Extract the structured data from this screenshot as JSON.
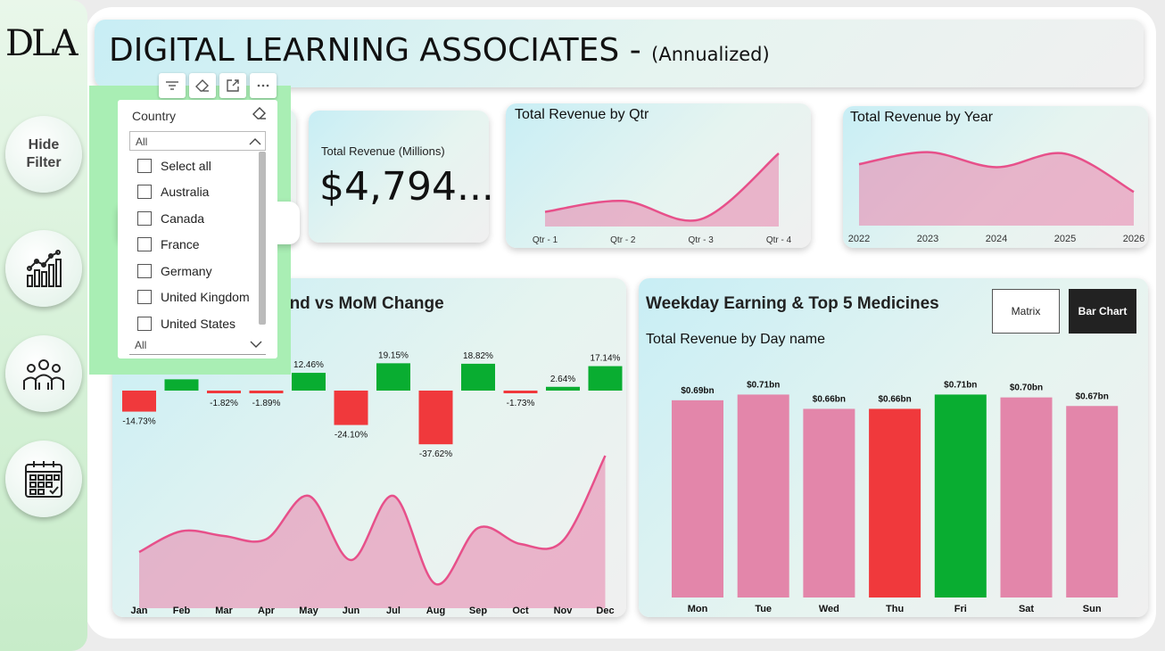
{
  "logo": "DLA",
  "sidebar": {
    "hide_filter_label_1": "Hide",
    "hide_filter_label_2": "Filter",
    "icons": [
      "line-chart-icon",
      "people-icon",
      "calendar-icon"
    ]
  },
  "header": {
    "title": "DIGITAL LEARNING ASSOCIATES -",
    "subtitle": "(Annualized)"
  },
  "kpi": {
    "label": "Total Revenue (Millions)",
    "value": "$4,794..."
  },
  "qtr_chart": {
    "title": "Total Revenue by Qtr",
    "chart_data": {
      "type": "area",
      "categories": [
        "Qtr - 1",
        "Qtr - 2",
        "Qtr - 3",
        "Qtr - 4"
      ],
      "values": [
        0.2,
        0.35,
        0.1,
        1.0
      ]
    }
  },
  "year_chart": {
    "title": "Total Revenue by Year",
    "chart_data": {
      "type": "area",
      "categories": [
        "2022",
        "2023",
        "2024",
        "2025",
        "2026"
      ],
      "values": [
        0.82,
        0.98,
        0.78,
        0.96,
        0.45
      ]
    }
  },
  "mom_chart": {
    "title": "end vs MoM Change",
    "chart_data": {
      "type": "bar",
      "categories": [
        "Jan",
        "Feb",
        "Mar",
        "Apr",
        "May",
        "Jun",
        "Jul",
        "Aug",
        "Sep",
        "Oct",
        "Nov",
        "Dec"
      ],
      "mom_values": [
        -14.73,
        7.9,
        -1.82,
        -1.89,
        12.46,
        -24.1,
        19.15,
        -37.62,
        18.82,
        -1.73,
        2.64,
        17.14
      ],
      "labels": [
        "-14.73%",
        "",
        "-1.82%",
        "-1.89%",
        "12.46%",
        "-24.10%",
        "19.15%",
        "-37.62%",
        "18.82%",
        "-1.73%",
        "2.64%",
        "17.14%"
      ],
      "trend_values": [
        0.35,
        0.48,
        0.45,
        0.43,
        0.7,
        0.3,
        0.7,
        0.15,
        0.5,
        0.4,
        0.42,
        0.95
      ]
    }
  },
  "weekday": {
    "title": "Weekday Earning & Top 5 Medicines",
    "matrix_label": "Matrix",
    "bar_chart_label": "Bar Chart",
    "subtitle": "Total Revenue by Day name",
    "chart_data": {
      "type": "bar",
      "categories": [
        "Mon",
        "Tue",
        "Wed",
        "Thu",
        "Fri",
        "Sat",
        "Sun"
      ],
      "values": [
        0.69,
        0.71,
        0.66,
        0.66,
        0.71,
        0.7,
        0.67
      ],
      "labels": [
        "$0.69bn",
        "$0.71bn",
        "$0.66bn",
        "$0.66bn",
        "$0.71bn",
        "$0.70bn",
        "$0.67bn"
      ],
      "ylim": [
        0,
        0.78
      ],
      "colors": [
        "#e386aa",
        "#e386aa",
        "#e386aa",
        "#f0393c",
        "#09ad31",
        "#e386aa",
        "#e386aa"
      ]
    }
  },
  "slicer": {
    "title": "Country",
    "selected": "All",
    "options": [
      "Select all",
      "Australia",
      "Canada",
      "France",
      "Germany",
      "United Kingdom",
      "United States"
    ],
    "footer_selected": "All"
  },
  "colors": {
    "pink": "#e386aa",
    "pink_line": "#e7508a",
    "green": "#09ad31",
    "red": "#f0393c"
  }
}
